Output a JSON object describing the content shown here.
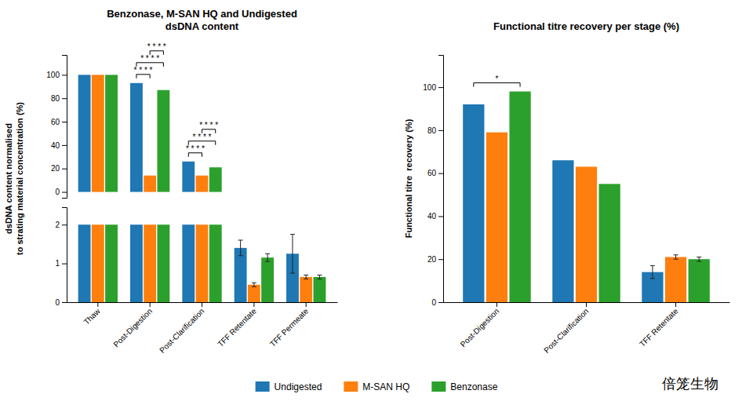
{
  "chart_data": [
    {
      "type": "bar",
      "title": "Benzonase, M-SAN HQ and Undigested\ndsDNA content",
      "ylabel": "dsDNA content normalised\nto strating material concentration (%)",
      "categories": [
        "Thaw",
        "Post-Digestion",
        "Post-Clarification",
        "TFF Retentate",
        "TFF Permeate"
      ],
      "series": [
        {
          "name": "Undigested",
          "values": [
            100,
            93,
            26,
            null,
            null
          ]
        },
        {
          "name": "M-SAN HQ",
          "values": [
            100,
            14,
            14,
            null,
            null
          ]
        },
        {
          "name": "Benzonase",
          "values": [
            100,
            87,
            21,
            null,
            null
          ]
        }
      ],
      "ylim": [
        -5,
        117
      ],
      "yticks": [
        0,
        20,
        40,
        60,
        80,
        100
      ],
      "tick_labels": "y",
      "annotations": [
        {
          "text": "* * * *",
          "category": "Post-Digestion",
          "series": [
            "Undigested",
            "M-SAN HQ"
          ]
        },
        {
          "text": "* * * *",
          "category": "Post-Digestion",
          "series": [
            "Undigested",
            "Benzonase"
          ]
        },
        {
          "text": "* * * *",
          "category": "Post-Digestion",
          "series": [
            "M-SAN HQ",
            "Benzonase"
          ]
        },
        {
          "text": "* * * *",
          "category": "Post-Clarification",
          "series": [
            "Undigested",
            "M-SAN HQ"
          ]
        },
        {
          "text": "* * * *",
          "category": "Post-Clarification",
          "series": [
            "Undigested",
            "Benzonase"
          ]
        },
        {
          "text": "* * * *",
          "category": "Post-Clarification",
          "series": [
            "M-SAN HQ",
            "Benzonase"
          ]
        }
      ]
    },
    {
      "type": "bar",
      "categories": [
        "Thaw",
        "Post-Digestion",
        "Post-Clarification",
        "TFF Retentate",
        "TFF Permeate"
      ],
      "series": [
        {
          "name": "Undigested",
          "values": [
            2.0,
            2.0,
            2.0,
            1.4,
            1.25
          ],
          "errors": [
            0,
            0,
            0,
            0.2,
            0.5
          ]
        },
        {
          "name": "M-SAN HQ",
          "values": [
            2.0,
            2.0,
            2.0,
            0.45,
            0.65
          ],
          "errors": [
            0,
            0,
            0,
            0.05,
            0.05
          ]
        },
        {
          "name": "Benzonase",
          "values": [
            2.0,
            2.0,
            2.0,
            1.15,
            0.65
          ],
          "errors": [
            0,
            0,
            0,
            0.1,
            0.05
          ]
        }
      ],
      "ylim": [
        0,
        2.45
      ],
      "yticks": [
        0,
        1,
        2
      ]
    },
    {
      "type": "bar",
      "title": "Functional titre recovery per stage (%)",
      "ylabel": "Functional titre  recovery (%)",
      "categories": [
        "Post-Digestion",
        "Post-Clarification",
        "TFF Retentate"
      ],
      "series": [
        {
          "name": "Undigested",
          "values": [
            92,
            66,
            14
          ],
          "errors": [
            0,
            0,
            3
          ]
        },
        {
          "name": "M-SAN HQ",
          "values": [
            79,
            63,
            21
          ],
          "errors": [
            0,
            0,
            1
          ]
        },
        {
          "name": "Benzonase",
          "values": [
            98,
            55,
            20
          ],
          "errors": [
            0,
            0,
            1
          ]
        }
      ],
      "ylim": [
        0,
        115
      ],
      "yticks": [
        0,
        20,
        40,
        60,
        80,
        100
      ],
      "legend": "bottom",
      "annotations": [
        {
          "text": "*",
          "category": "Post-Digestion",
          "series": [
            "Undigested",
            "Benzonase"
          ]
        },
        {
          "text": "倍笼生物"
        }
      ]
    }
  ]
}
